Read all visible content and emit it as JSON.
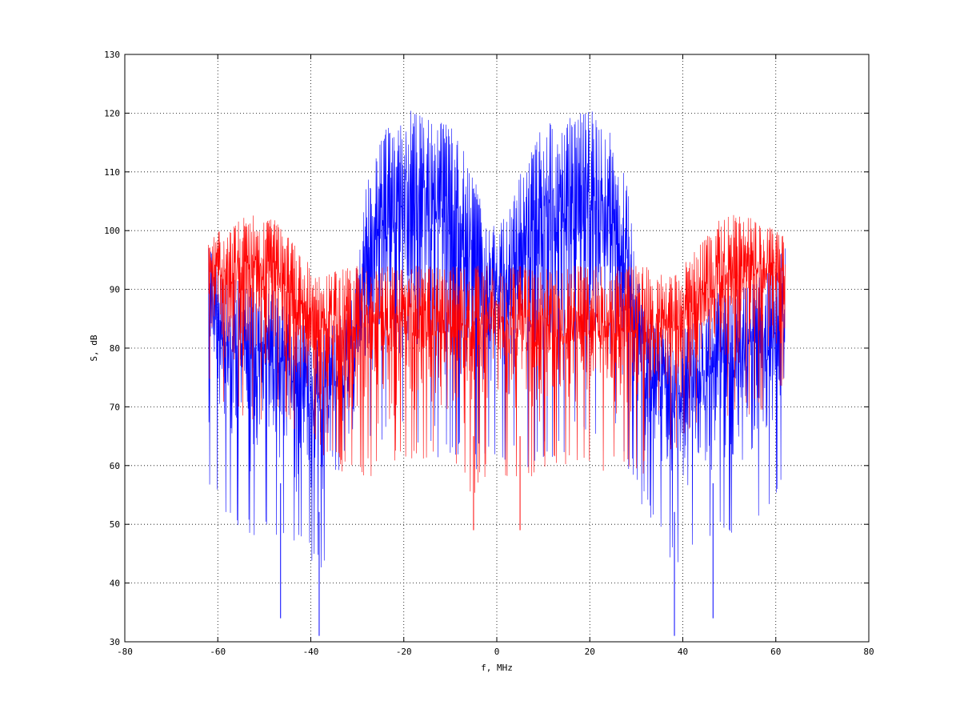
{
  "chart_data": {
    "type": "line",
    "xlabel": "f, MHz",
    "ylabel": "S, dB",
    "xlim": [
      -80,
      80
    ],
    "ylim": [
      30,
      130
    ],
    "xticks": [
      -80,
      -60,
      -40,
      -20,
      0,
      20,
      40,
      60,
      80
    ],
    "yticks": [
      30,
      40,
      50,
      60,
      70,
      80,
      90,
      100,
      110,
      120,
      130
    ],
    "xtick_labels": [
      "-80",
      "-60",
      "-40",
      "-20",
      "0",
      "20",
      "40",
      "60",
      "80"
    ],
    "ytick_labels": [
      "30",
      "40",
      "50",
      "60",
      "70",
      "80",
      "90",
      "100",
      "110",
      "120",
      "130"
    ],
    "grid": true,
    "legend": "none",
    "style": "dense oscillating spectrum traces; each point is a spike between min and max envelope",
    "series": [
      {
        "color": "#0000ff",
        "x": [
          -62,
          -58,
          -55,
          -52,
          -48,
          -45,
          -42,
          -38,
          -35,
          -32,
          -30,
          -28,
          -25,
          -22,
          -20,
          -15,
          -10,
          -6,
          -3,
          0,
          3,
          6,
          10,
          15,
          20,
          22,
          25,
          28,
          30,
          32,
          35,
          38,
          42,
          45,
          48,
          52,
          55,
          58,
          62
        ],
        "max": [
          97,
          93,
          91,
          90,
          90,
          86,
          84,
          83,
          84,
          86,
          94,
          108,
          116,
          119,
          121,
          119,
          118,
          112,
          104,
          100,
          104,
          112,
          118,
          119,
          121,
          119,
          116,
          108,
          94,
          86,
          84,
          83,
          84,
          86,
          90,
          90,
          91,
          93,
          97
        ],
        "min": [
          55,
          50,
          47,
          47,
          48,
          46,
          44,
          42,
          47,
          52,
          55,
          60,
          63,
          63,
          64,
          62,
          60,
          58,
          60,
          62,
          60,
          58,
          60,
          62,
          64,
          63,
          63,
          60,
          55,
          52,
          47,
          42,
          44,
          46,
          48,
          47,
          47,
          50,
          55
        ],
        "deep_dips": [
          [
            -46.5,
            34
          ],
          [
            -38.2,
            31
          ],
          [
            38.2,
            31
          ],
          [
            46.5,
            34
          ]
        ]
      },
      {
        "color": "#ff0000",
        "x": [
          -62,
          -58,
          -55,
          -52,
          -48,
          -45,
          -42,
          -38,
          -35,
          -32,
          -30,
          -25,
          -20,
          -15,
          -10,
          -5,
          -2,
          0,
          2,
          5,
          10,
          15,
          20,
          25,
          30,
          32,
          35,
          38,
          42,
          45,
          48,
          52,
          55,
          58,
          62
        ],
        "max": [
          99,
          101,
          102,
          103,
          102,
          99,
          96,
          92,
          93,
          94,
          94,
          94,
          94,
          94,
          94,
          94,
          94,
          94,
          94,
          94,
          94,
          94,
          94,
          94,
          94,
          94,
          93,
          92,
          96,
          99,
          102,
          103,
          102,
          101,
          99
        ],
        "min": [
          74,
          70,
          68,
          67,
          68,
          66,
          64,
          62,
          60,
          58,
          58,
          58,
          60,
          60,
          58,
          55,
          58,
          62,
          58,
          55,
          58,
          60,
          60,
          58,
          58,
          58,
          60,
          62,
          64,
          66,
          68,
          67,
          68,
          70,
          74
        ],
        "deep_dips": [
          [
            -5,
            49
          ],
          [
            5,
            49
          ]
        ]
      }
    ]
  }
}
